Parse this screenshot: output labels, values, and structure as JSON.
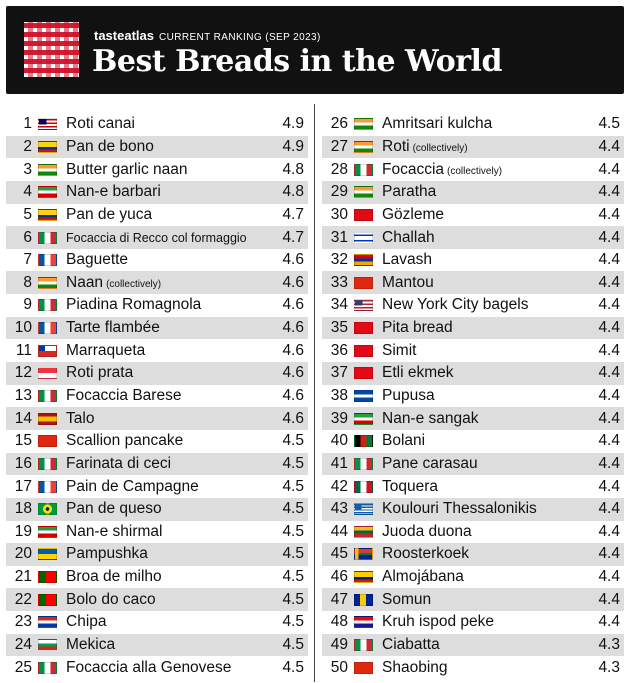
{
  "header": {
    "brand": "tasteatlas",
    "subtitle": "CURRENT RANKING (SEP 2023)",
    "title": "Best Breads in the World"
  },
  "flag_colors": {
    "MY": [
      "#cc0001",
      "#ffffff",
      "#010066"
    ],
    "CO": [
      "#fcd116",
      "#003893",
      "#ce1126"
    ],
    "IN": [
      "#ff9933",
      "#ffffff",
      "#138808"
    ],
    "IR": [
      "#239f40",
      "#ffffff",
      "#da0000"
    ],
    "IT": [
      "#009246",
      "#ffffff",
      "#ce2b37"
    ],
    "FR": [
      "#0055a4",
      "#ffffff",
      "#ef4135"
    ],
    "CL": [
      "#ffffff",
      "#d52b1e",
      "#0039a6"
    ],
    "SG": [
      "#ef3340",
      "#ffffff"
    ],
    "ES": [
      "#aa151b",
      "#f1bf00",
      "#aa151b"
    ],
    "CN": [
      "#de2910",
      "#ffde00"
    ],
    "BR": [
      "#009c3b",
      "#ffdf00",
      "#002776"
    ],
    "UA": [
      "#0057b7",
      "#ffd700"
    ],
    "PT": [
      "#006600",
      "#ff0000"
    ],
    "PY": [
      "#d52b1e",
      "#ffffff",
      "#0038a8"
    ],
    "BG": [
      "#ffffff",
      "#00966e",
      "#d62612"
    ],
    "TR": [
      "#e30a17",
      "#ffffff"
    ],
    "IL": [
      "#ffffff",
      "#0038b8"
    ],
    "AM": [
      "#d90012",
      "#0033a0",
      "#f2a800"
    ],
    "US": [
      "#b22234",
      "#ffffff",
      "#3c3b6e"
    ],
    "SV": [
      "#0047ab",
      "#ffffff",
      "#0047ab"
    ],
    "AF": [
      "#000000",
      "#d32011",
      "#007a36"
    ],
    "MX": [
      "#006847",
      "#ffffff",
      "#ce1126"
    ],
    "GR": [
      "#0d5eaf",
      "#ffffff"
    ],
    "LT": [
      "#fdb913",
      "#006a44",
      "#c1272d"
    ],
    "ZA": [
      "#007a4d",
      "#de3831",
      "#002395",
      "#ffb612"
    ],
    "VE": [
      "#ffcc00",
      "#00247d",
      "#cf142b"
    ],
    "BA": [
      "#002395",
      "#fecb00"
    ],
    "HR": [
      "#ff0000",
      "#ffffff",
      "#171796"
    ]
  },
  "left": [
    {
      "rank": "1",
      "flag": "MY",
      "name": "Roti canai",
      "note": "",
      "score": "4.9"
    },
    {
      "rank": "2",
      "flag": "CO",
      "name": "Pan de bono",
      "note": "",
      "score": "4.9"
    },
    {
      "rank": "3",
      "flag": "IN",
      "name": "Butter garlic naan",
      "note": "",
      "score": "4.8"
    },
    {
      "rank": "4",
      "flag": "IR",
      "name": "Nan-e barbari",
      "note": "",
      "score": "4.8"
    },
    {
      "rank": "5",
      "flag": "CO",
      "name": "Pan de yuca",
      "note": "",
      "score": "4.7"
    },
    {
      "rank": "6",
      "flag": "IT",
      "name": "Focaccia di Recco col formaggio",
      "note": "",
      "score": "4.7",
      "small": true
    },
    {
      "rank": "7",
      "flag": "FR",
      "name": "Baguette",
      "note": "",
      "score": "4.6"
    },
    {
      "rank": "8",
      "flag": "IN",
      "name": "Naan",
      "note": "(collectively)",
      "score": "4.6"
    },
    {
      "rank": "9",
      "flag": "IT",
      "name": "Piadina Romagnola",
      "note": "",
      "score": "4.6"
    },
    {
      "rank": "10",
      "flag": "FR",
      "name": "Tarte flambée",
      "note": "",
      "score": "4.6"
    },
    {
      "rank": "11",
      "flag": "CL",
      "name": "Marraqueta",
      "note": "",
      "score": "4.6"
    },
    {
      "rank": "12",
      "flag": "SG",
      "name": "Roti prata",
      "note": "",
      "score": "4.6"
    },
    {
      "rank": "13",
      "flag": "IT",
      "name": "Focaccia Barese",
      "note": "",
      "score": "4.6"
    },
    {
      "rank": "14",
      "flag": "ES",
      "name": "Talo",
      "note": "",
      "score": "4.6"
    },
    {
      "rank": "15",
      "flag": "CN",
      "name": "Scallion pancake",
      "note": "",
      "score": "4.5"
    },
    {
      "rank": "16",
      "flag": "IT",
      "name": "Farinata di ceci",
      "note": "",
      "score": "4.5"
    },
    {
      "rank": "17",
      "flag": "FR",
      "name": "Pain de Campagne",
      "note": "",
      "score": "4.5"
    },
    {
      "rank": "18",
      "flag": "BR",
      "name": "Pan de queso",
      "note": "",
      "score": "4.5"
    },
    {
      "rank": "19",
      "flag": "IR",
      "name": "Nan-e shirmal",
      "note": "",
      "score": "4.5"
    },
    {
      "rank": "20",
      "flag": "UA",
      "name": "Pampushka",
      "note": "",
      "score": "4.5"
    },
    {
      "rank": "21",
      "flag": "PT",
      "name": "Broa de milho",
      "note": "",
      "score": "4.5"
    },
    {
      "rank": "22",
      "flag": "PT",
      "name": "Bolo do caco",
      "note": "",
      "score": "4.5"
    },
    {
      "rank": "23",
      "flag": "PY",
      "name": "Chipa",
      "note": "",
      "score": "4.5"
    },
    {
      "rank": "24",
      "flag": "BG",
      "name": "Mekica",
      "note": "",
      "score": "4.5"
    },
    {
      "rank": "25",
      "flag": "IT",
      "name": "Focaccia alla Genovese",
      "note": "",
      "score": "4.5"
    }
  ],
  "right": [
    {
      "rank": "26",
      "flag": "IN",
      "name": "Amritsari kulcha",
      "note": "",
      "score": "4.5"
    },
    {
      "rank": "27",
      "flag": "IN",
      "name": "Roti",
      "note": "(collectively)",
      "score": "4.4"
    },
    {
      "rank": "28",
      "flag": "IT",
      "name": "Focaccia",
      "note": "(collectively)",
      "score": "4.4"
    },
    {
      "rank": "29",
      "flag": "IN",
      "name": "Paratha",
      "note": "",
      "score": "4.4"
    },
    {
      "rank": "30",
      "flag": "TR",
      "name": "Gözleme",
      "note": "",
      "score": "4.4"
    },
    {
      "rank": "31",
      "flag": "IL",
      "name": "Challah",
      "note": "",
      "score": "4.4"
    },
    {
      "rank": "32",
      "flag": "AM",
      "name": "Lavash",
      "note": "",
      "score": "4.4"
    },
    {
      "rank": "33",
      "flag": "CN",
      "name": "Mantou",
      "note": "",
      "score": "4.4"
    },
    {
      "rank": "34",
      "flag": "US",
      "name": "New York City bagels",
      "note": "",
      "score": "4.4"
    },
    {
      "rank": "35",
      "flag": "TR",
      "name": "Pita bread",
      "note": "",
      "score": "4.4"
    },
    {
      "rank": "36",
      "flag": "TR",
      "name": "Simit",
      "note": "",
      "score": "4.4"
    },
    {
      "rank": "37",
      "flag": "TR",
      "name": "Etli ekmek",
      "note": "",
      "score": "4.4"
    },
    {
      "rank": "38",
      "flag": "SV",
      "name": "Pupusa",
      "note": "",
      "score": "4.4"
    },
    {
      "rank": "39",
      "flag": "IR",
      "name": "Nan-e sangak",
      "note": "",
      "score": "4.4"
    },
    {
      "rank": "40",
      "flag": "AF",
      "name": "Bolani",
      "note": "",
      "score": "4.4"
    },
    {
      "rank": "41",
      "flag": "IT",
      "name": "Pane carasau",
      "note": "",
      "score": "4.4"
    },
    {
      "rank": "42",
      "flag": "MX",
      "name": "Toquera",
      "note": "",
      "score": "4.4"
    },
    {
      "rank": "43",
      "flag": "GR",
      "name": "Koulouri Thessalonikis",
      "note": "",
      "score": "4.4"
    },
    {
      "rank": "44",
      "flag": "LT",
      "name": "Juoda duona",
      "note": "",
      "score": "4.4"
    },
    {
      "rank": "45",
      "flag": "ZA",
      "name": "Roosterkoek",
      "note": "",
      "score": "4.4"
    },
    {
      "rank": "46",
      "flag": "VE",
      "name": "Almojábana",
      "note": "",
      "score": "4.4"
    },
    {
      "rank": "47",
      "flag": "BA",
      "name": "Somun",
      "note": "",
      "score": "4.4"
    },
    {
      "rank": "48",
      "flag": "HR",
      "name": "Kruh ispod peke",
      "note": "",
      "score": "4.4"
    },
    {
      "rank": "49",
      "flag": "IT",
      "name": "Ciabatta",
      "note": "",
      "score": "4.3"
    },
    {
      "rank": "50",
      "flag": "CN",
      "name": "Shaobing",
      "note": "",
      "score": "4.3"
    }
  ]
}
